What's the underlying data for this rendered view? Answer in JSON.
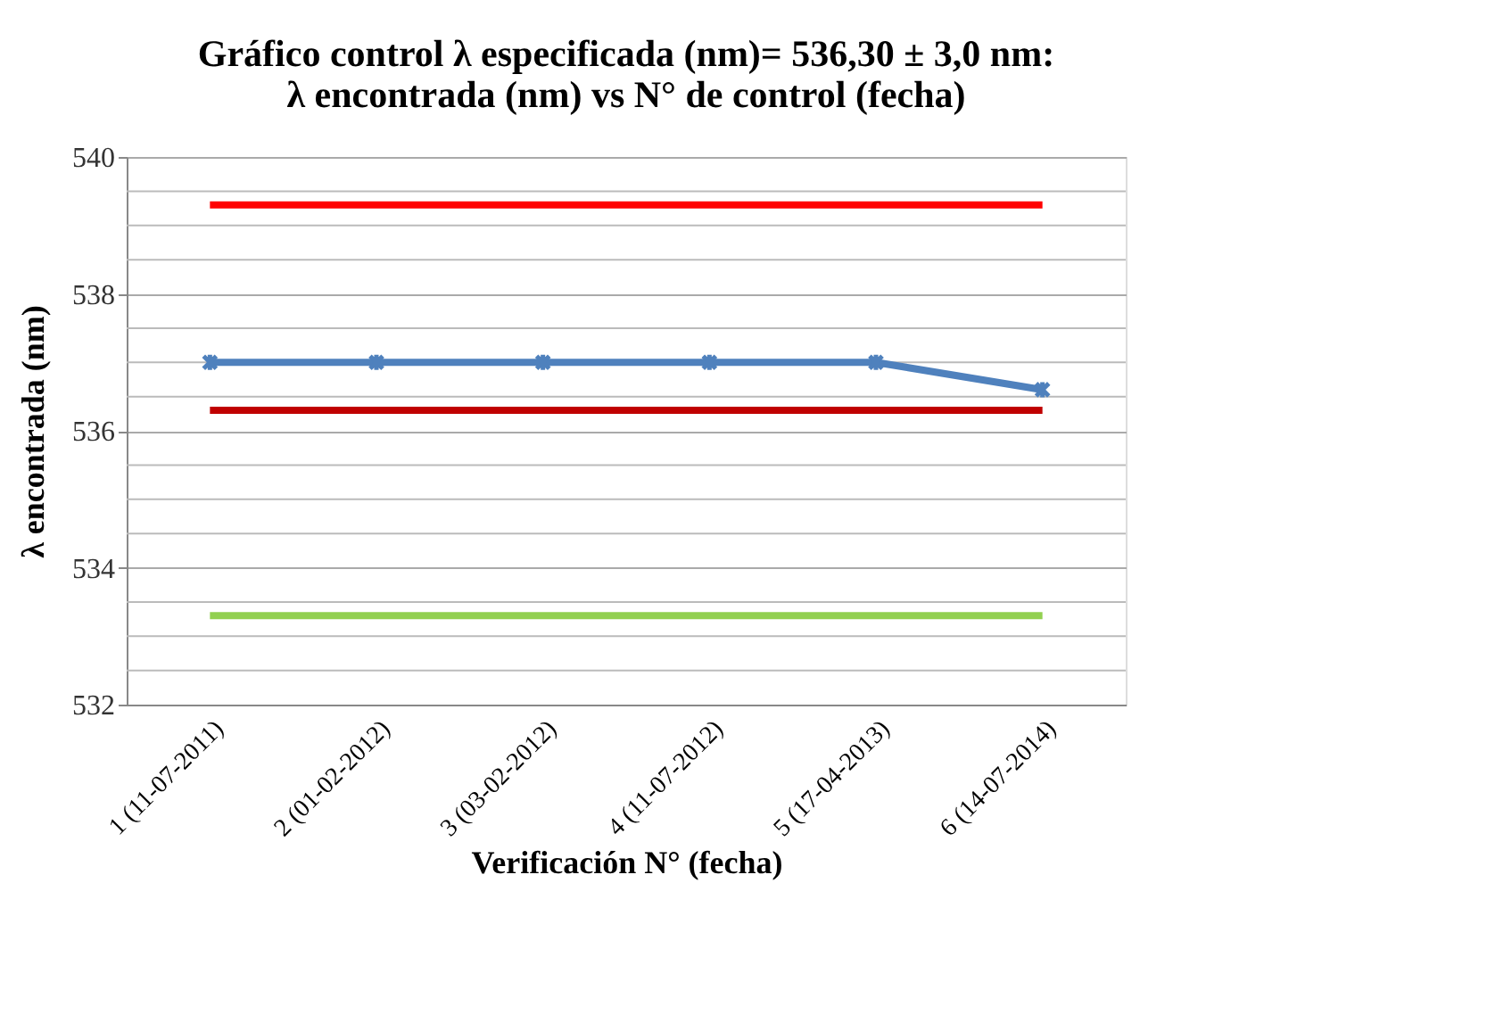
{
  "chart_data": {
    "type": "line",
    "title": "Gráfico control λ especificada (nm)= 536,30 ± 3,0 nm:\nλ encontrada (nm) vs N° de control (fecha)",
    "xlabel": "Verificación N° (fecha)",
    "ylabel": "λ encontrada (nm)",
    "categories": [
      "1 (11-07-2011)",
      "2 (01-02-2012)",
      "3 (03-02-2012)",
      "4 (11-07-2012)",
      "5 (17-04-2013)",
      "6 (14-07-2014)"
    ],
    "series": [
      {
        "color": "#4f81bd",
        "values": [
          537.0,
          537.0,
          537.0,
          537.0,
          537.0,
          536.6
        ],
        "marker": "cross"
      },
      {
        "color": "#ff0000",
        "values": [
          539.3,
          539.3,
          539.3,
          539.3,
          539.3,
          539.3
        ],
        "marker": "none"
      },
      {
        "color": "#c00000",
        "values": [
          536.3,
          536.3,
          536.3,
          536.3,
          536.3,
          536.3
        ],
        "marker": "none"
      },
      {
        "color": "#92d050",
        "values": [
          533.3,
          533.3,
          533.3,
          533.3,
          533.3,
          533.3
        ],
        "marker": "none"
      }
    ],
    "ylim": [
      532,
      540
    ],
    "yticks": [
      532,
      {
        "value": 532.5,
        "label": null
      },
      {
        "value": 533,
        "label": null
      },
      {
        "value": 533.5,
        "label": null
      },
      534,
      {
        "value": 534.5,
        "label": null
      },
      {
        "value": 535,
        "label": null
      },
      {
        "value": 535.5,
        "label": null
      },
      536,
      {
        "value": 536.5,
        "label": null
      },
      {
        "value": 537,
        "label": null
      },
      {
        "value": 537.5,
        "label": null
      },
      538,
      {
        "value": 538.5,
        "label": null
      },
      {
        "value": 539,
        "label": null
      },
      {
        "value": 539.5,
        "label": null
      },
      540
    ],
    "grid": true,
    "line_style": "solid"
  }
}
